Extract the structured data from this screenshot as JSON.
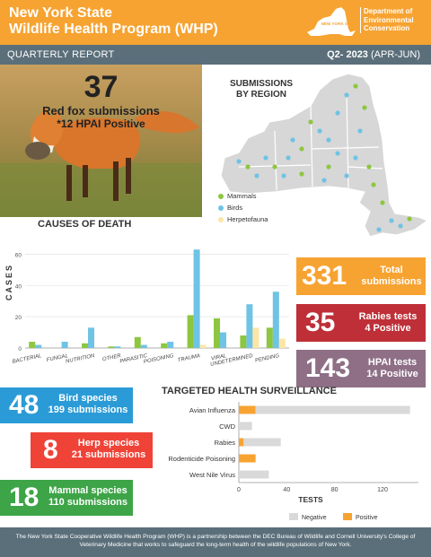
{
  "header": {
    "title_line1": "New York State",
    "title_line2": "Wildlife Health Program (WHP)",
    "state_label": "NEW YORK STATE",
    "dec_line1": "Department of",
    "dec_line2": "Environmental",
    "dec_line3": "Conservation"
  },
  "subheader": {
    "report": "QUARTERLY REPORT",
    "quarter": "Q2- 2023",
    "months": "(APR-JUN)"
  },
  "feature": {
    "count": "37",
    "label": "Red fox submissions",
    "hpai": "*12 HPAI Positive"
  },
  "map": {
    "title_line1": "SUBMISSIONS",
    "title_line2": "BY REGION",
    "legend": [
      {
        "label": "Mammals",
        "color": "#8dc63f"
      },
      {
        "label": "Birds",
        "color": "#6fc3e4"
      },
      {
        "label": "Herpetofauna",
        "color": "#fbe6a6"
      }
    ]
  },
  "stats": {
    "total_num": "331",
    "total_label": "Total submissions",
    "rabies_num": "35",
    "rabies_label1": "Rabies tests",
    "rabies_label2": "4 Positive",
    "hpai_num": "143",
    "hpai_label1": "HPAI tests",
    "hpai_label2": "14 Positive",
    "bird_num": "48",
    "bird_label1": "Bird species",
    "bird_label2": "199 submissions",
    "herp_num": "8",
    "herp_label1": "Herp species",
    "herp_label2": "21 submissions",
    "mammal_num": "18",
    "mammal_label1": "Mammal species",
    "mammal_label2": "110 submissions"
  },
  "colors": {
    "orange": "#f7a331",
    "slate": "#5b6f7a",
    "red": "#be2f37",
    "mauve": "#8e6f86",
    "blue": "#2a9bd6",
    "coral": "#ef4338",
    "green": "#3da447",
    "mammal_green": "#8dc63f",
    "bird_blue": "#6fc3e4",
    "herp_yellow": "#fbe6a6",
    "negative_gray": "#d9d9d9",
    "positive_orange": "#f7a331"
  },
  "chart_data": [
    {
      "type": "bar",
      "title": "CAUSES OF DEATH",
      "ylabel": "CASES",
      "xlabel": "",
      "ylim": [
        0,
        70
      ],
      "yticks": [
        0,
        20,
        40,
        60
      ],
      "categories": [
        "BACTERIAL",
        "FUNGAL",
        "NUTRITION",
        "OTHER",
        "PARASITIC",
        "POISONING",
        "TRAUMA",
        "VIRAL",
        "UNDETERMINED",
        "PENDING"
      ],
      "series": [
        {
          "name": "Mammals",
          "color": "#8dc63f",
          "values": [
            4,
            0,
            3,
            1,
            7,
            3,
            21,
            19,
            8,
            13
          ]
        },
        {
          "name": "Birds",
          "color": "#6fc3e4",
          "values": [
            2,
            4,
            13,
            1,
            2,
            4,
            63,
            10,
            28,
            36
          ]
        },
        {
          "name": "Herpetofauna",
          "color": "#fbe6a6",
          "values": [
            0,
            0,
            0,
            0,
            0,
            0,
            2,
            0,
            13,
            6
          ]
        }
      ],
      "grid": true
    },
    {
      "type": "bar",
      "orientation": "horizontal",
      "stacked": true,
      "title": "TARGETED HEALTH SURVEILLANCE",
      "xlabel": "TESTS",
      "ylabel": "",
      "xlim": [
        0,
        150
      ],
      "xticks": [
        0,
        40,
        80,
        120
      ],
      "categories": [
        "Avian Influenza",
        "CWD",
        "Rabies",
        "Rodenticide Poisoning",
        "West Nile Virus"
      ],
      "series": [
        {
          "name": "Positive",
          "color": "#f7a331",
          "values": [
            14,
            0,
            4,
            14,
            0
          ]
        },
        {
          "name": "Negative",
          "color": "#d9d9d9",
          "values": [
            129,
            11,
            31,
            0,
            25
          ]
        }
      ],
      "legend": "bottom",
      "grid": false
    }
  ],
  "footer": {
    "text": "The New York State Cooperative Wildlife Health Program (WHP) is a partnership between the DEC Bureau of Wildlife and Cornell University's College of Veterinary Medicine that works to safeguard the long-term health of the wildlife populations of New York."
  }
}
